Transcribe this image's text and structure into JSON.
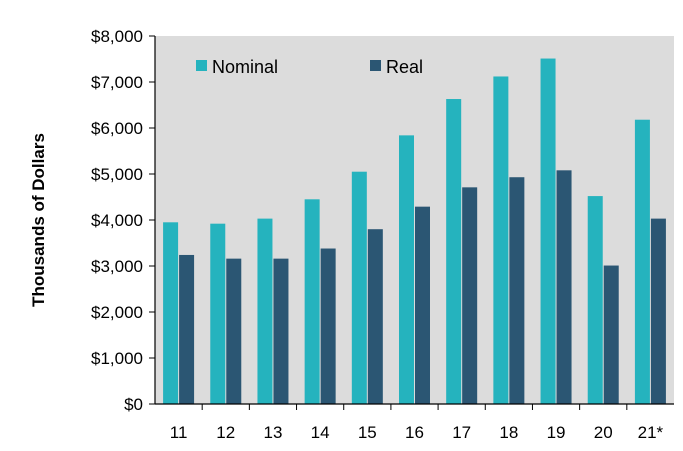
{
  "chart_data": {
    "type": "bar",
    "title": "",
    "xlabel": "",
    "ylabel": "Thousands of Dollars",
    "categories": [
      "11",
      "12",
      "13",
      "14",
      "15",
      "16",
      "17",
      "18",
      "19",
      "20",
      "21*"
    ],
    "series": [
      {
        "name": "Nominal",
        "color": "#25B3BE",
        "values": [
          3950,
          3920,
          4030,
          4450,
          5050,
          5840,
          6630,
          7120,
          7510,
          4520,
          6180
        ]
      },
      {
        "name": "Real",
        "color": "#2B5673",
        "values": [
          3240,
          3160,
          3160,
          3380,
          3800,
          4290,
          4710,
          4930,
          5080,
          3010,
          4030
        ]
      }
    ],
    "ylim": [
      0,
      8000
    ],
    "yticks": [
      "$0",
      "$1,000",
      "$2,000",
      "$3,000",
      "$4,000",
      "$5,000",
      "$6,000",
      "$7,000",
      "$8,000"
    ],
    "grid": false,
    "legend": "top-left",
    "plot_background": "#DCDCDC"
  }
}
